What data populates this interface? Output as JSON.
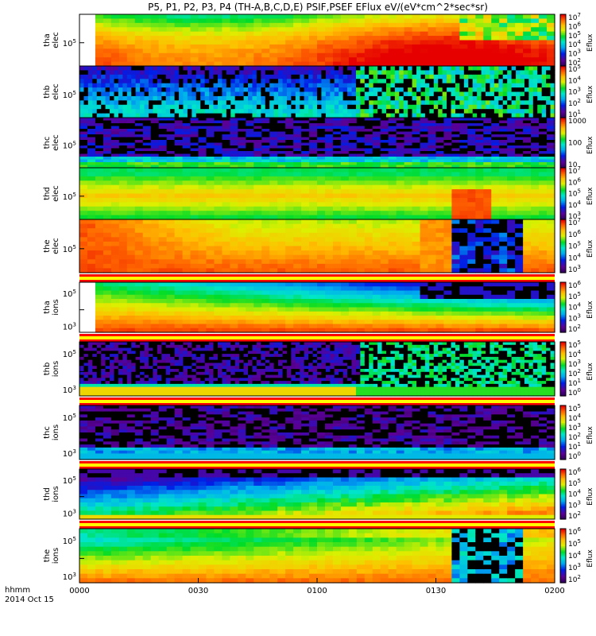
{
  "title": "P5, P1, P2, P3, P4 (TH-A,B,C,D,E) PSIF,PSEF EFlux eV/(eV*cm^2*sec*sr)",
  "footer": {
    "unit": "hhmm",
    "date": "2014 Oct 15"
  },
  "chart_data": {
    "type": "heatmap",
    "xticks": [
      "0000",
      "0030",
      "0100",
      "0130",
      "0200"
    ],
    "xlim_hours": [
      0,
      2
    ],
    "panels": [
      {
        "label1": "tha",
        "label2": "elec",
        "ytick": "10^5",
        "cbar_label": "Eflux",
        "cbar_ticks": [
          "10^7",
          "10^6",
          "10^5",
          "10^4",
          "10^3",
          "10^2"
        ],
        "pattern": "tha_elec",
        "bar_below": false
      },
      {
        "label1": "thb",
        "label2": "elec",
        "ytick": "10^5",
        "cbar_label": "Eflux",
        "cbar_ticks": [
          "10^5",
          "10^4",
          "10^3",
          "10^2",
          "10^1"
        ],
        "pattern": "thb_elec",
        "bar_below": false
      },
      {
        "label1": "thc",
        "label2": "elec",
        "ytick": "10^5",
        "cbar_label": "Eflux",
        "cbar_ticks": [
          "1000",
          "100",
          "10"
        ],
        "pattern": "thc_elec",
        "bar_below": false
      },
      {
        "label1": "thd",
        "label2": "elec",
        "ytick": "10^5",
        "cbar_label": "Eflux",
        "cbar_ticks": [
          "10^7",
          "10^6",
          "10^5",
          "10^4",
          "10^3"
        ],
        "pattern": "thd_elec",
        "bar_below": false
      },
      {
        "label1": "the",
        "label2": "elec",
        "ytick": "10^5",
        "cbar_label": "Eflux",
        "cbar_ticks": [
          "10^7",
          "10^6",
          "10^5",
          "10^4",
          "10^3"
        ],
        "pattern": "the_elec",
        "bar_below": true
      },
      {
        "label1": "tha",
        "label2": "ions",
        "ytick": "10^5",
        "ytick2": "10^3",
        "cbar_label": "Eflux",
        "cbar_ticks": [
          "10^6",
          "10^5",
          "10^4",
          "10^3",
          "10^2"
        ],
        "pattern": "tha_ions",
        "bar_below": true
      },
      {
        "label1": "thb",
        "label2": "ions",
        "ytick": "10^5",
        "ytick2": "10^3",
        "cbar_label": "Eflux",
        "cbar_ticks": [
          "10^5",
          "10^4",
          "10^3",
          "10^2",
          "10^1",
          "10^0"
        ],
        "pattern": "thb_ions",
        "bar_below": true
      },
      {
        "label1": "thc",
        "label2": "ions",
        "ytick": "10^5",
        "ytick2": "10^3",
        "cbar_label": "Eflux",
        "cbar_ticks": [
          "10^5",
          "10^4",
          "10^3",
          "10^2",
          "10^1",
          "10^0"
        ],
        "pattern": "thc_ions",
        "bar_below": true
      },
      {
        "label1": "thd",
        "label2": "ions",
        "ytick": "10^5",
        "ytick2": "10^3",
        "cbar_label": "Eflux",
        "cbar_ticks": [
          "10^6",
          "10^5",
          "10^4",
          "10^3",
          "10^2"
        ],
        "pattern": "thd_ions",
        "bar_below": true
      },
      {
        "label1": "the",
        "label2": "ions",
        "ytick": "10^5",
        "ytick2": "10^3",
        "cbar_label": "Eflux",
        "cbar_ticks": [
          "10^6",
          "10^5",
          "10^4",
          "10^3",
          "10^2"
        ],
        "pattern": "the_ions",
        "bar_below": false
      }
    ]
  }
}
